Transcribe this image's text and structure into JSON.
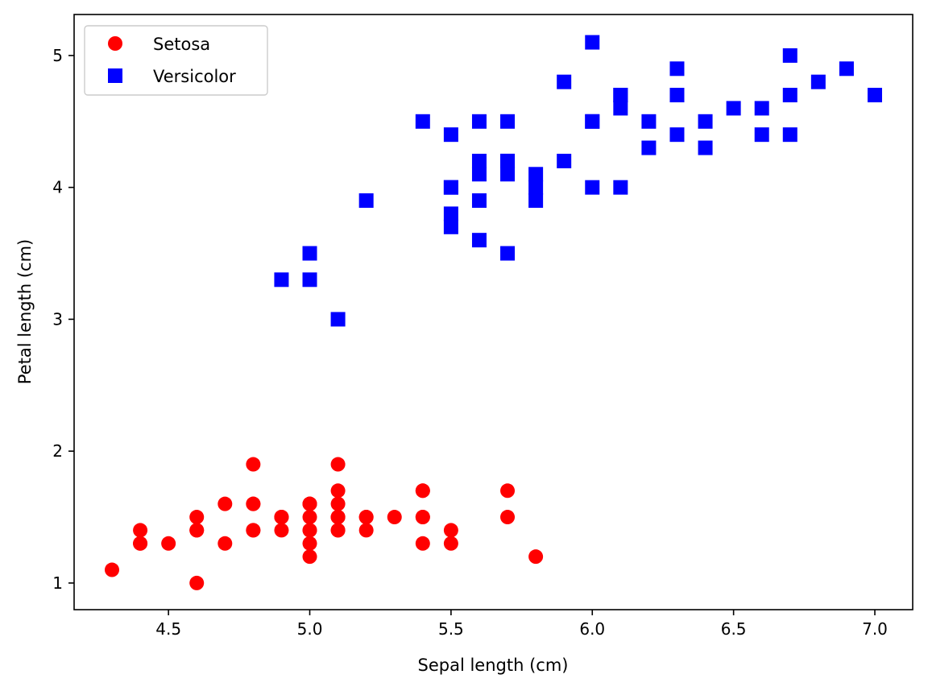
{
  "chart_data": {
    "type": "scatter",
    "title": "",
    "xlabel": "Sepal length (cm)",
    "ylabel": "Petal length (cm)",
    "xlim": [
      4.166,
      7.134
    ],
    "ylim": [
      0.798,
      5.311
    ],
    "xticks": [
      4.5,
      5.0,
      5.5,
      6.0,
      6.5,
      7.0
    ],
    "xtick_labels": [
      "4.5",
      "5.0",
      "5.5",
      "6.0",
      "6.5",
      "7.0"
    ],
    "yticks": [
      1,
      2,
      3,
      4,
      5
    ],
    "ytick_labels": [
      "1",
      "2",
      "3",
      "4",
      "5"
    ],
    "grid": false,
    "legend": {
      "placement": "top-left"
    },
    "series": [
      {
        "name": "Setosa",
        "color": "#ff0000",
        "marker": "circle",
        "points": [
          [
            5.1,
            1.4
          ],
          [
            4.9,
            1.4
          ],
          [
            4.7,
            1.3
          ],
          [
            4.6,
            1.5
          ],
          [
            5.0,
            1.4
          ],
          [
            5.4,
            1.7
          ],
          [
            4.6,
            1.4
          ],
          [
            5.0,
            1.5
          ],
          [
            4.4,
            1.4
          ],
          [
            4.9,
            1.5
          ],
          [
            5.4,
            1.5
          ],
          [
            4.8,
            1.6
          ],
          [
            4.8,
            1.4
          ],
          [
            4.3,
            1.1
          ],
          [
            5.8,
            1.2
          ],
          [
            5.7,
            1.5
          ],
          [
            5.4,
            1.3
          ],
          [
            5.1,
            1.4
          ],
          [
            5.7,
            1.7
          ],
          [
            5.1,
            1.5
          ],
          [
            5.4,
            1.7
          ],
          [
            5.1,
            1.5
          ],
          [
            4.6,
            1.0
          ],
          [
            5.1,
            1.7
          ],
          [
            4.8,
            1.9
          ],
          [
            5.0,
            1.6
          ],
          [
            5.0,
            1.6
          ],
          [
            5.2,
            1.5
          ],
          [
            5.2,
            1.4
          ],
          [
            4.7,
            1.6
          ],
          [
            4.8,
            1.6
          ],
          [
            5.4,
            1.5
          ],
          [
            5.2,
            1.5
          ],
          [
            5.5,
            1.4
          ],
          [
            4.9,
            1.5
          ],
          [
            5.0,
            1.2
          ],
          [
            5.5,
            1.3
          ],
          [
            4.9,
            1.5
          ],
          [
            4.4,
            1.3
          ],
          [
            5.1,
            1.5
          ],
          [
            5.0,
            1.3
          ],
          [
            4.5,
            1.3
          ],
          [
            4.4,
            1.3
          ],
          [
            5.0,
            1.6
          ],
          [
            5.1,
            1.9
          ],
          [
            4.8,
            1.4
          ],
          [
            5.1,
            1.6
          ],
          [
            4.6,
            1.4
          ],
          [
            5.3,
            1.5
          ],
          [
            5.0,
            1.4
          ]
        ]
      },
      {
        "name": "Versicolor",
        "color": "#0000ff",
        "marker": "square",
        "points": [
          [
            7.0,
            4.7
          ],
          [
            6.4,
            4.5
          ],
          [
            6.9,
            4.9
          ],
          [
            5.5,
            4.0
          ],
          [
            6.5,
            4.6
          ],
          [
            5.7,
            4.5
          ],
          [
            6.3,
            4.7
          ],
          [
            4.9,
            3.3
          ],
          [
            6.6,
            4.6
          ],
          [
            5.2,
            3.9
          ],
          [
            5.0,
            3.5
          ],
          [
            5.9,
            4.2
          ],
          [
            6.0,
            4.0
          ],
          [
            6.1,
            4.7
          ],
          [
            5.6,
            3.6
          ],
          [
            6.7,
            4.4
          ],
          [
            5.6,
            4.5
          ],
          [
            5.8,
            4.1
          ],
          [
            6.2,
            4.5
          ],
          [
            5.6,
            3.9
          ],
          [
            5.9,
            4.8
          ],
          [
            6.1,
            4.0
          ],
          [
            6.3,
            4.9
          ],
          [
            6.1,
            4.7
          ],
          [
            6.4,
            4.3
          ],
          [
            6.6,
            4.4
          ],
          [
            6.8,
            4.8
          ],
          [
            6.7,
            5.0
          ],
          [
            6.0,
            4.5
          ],
          [
            5.7,
            3.5
          ],
          [
            5.5,
            3.8
          ],
          [
            5.5,
            3.7
          ],
          [
            5.8,
            3.9
          ],
          [
            6.0,
            5.1
          ],
          [
            5.4,
            4.5
          ],
          [
            6.0,
            4.5
          ],
          [
            6.7,
            4.7
          ],
          [
            6.3,
            4.4
          ],
          [
            5.6,
            4.1
          ],
          [
            5.5,
            4.0
          ],
          [
            5.5,
            4.4
          ],
          [
            6.1,
            4.6
          ],
          [
            5.8,
            4.0
          ],
          [
            5.0,
            3.3
          ],
          [
            5.6,
            4.2
          ],
          [
            5.7,
            4.2
          ],
          [
            5.7,
            4.2
          ],
          [
            6.2,
            4.3
          ],
          [
            5.1,
            3.0
          ],
          [
            5.7,
            4.1
          ]
        ]
      }
    ]
  }
}
